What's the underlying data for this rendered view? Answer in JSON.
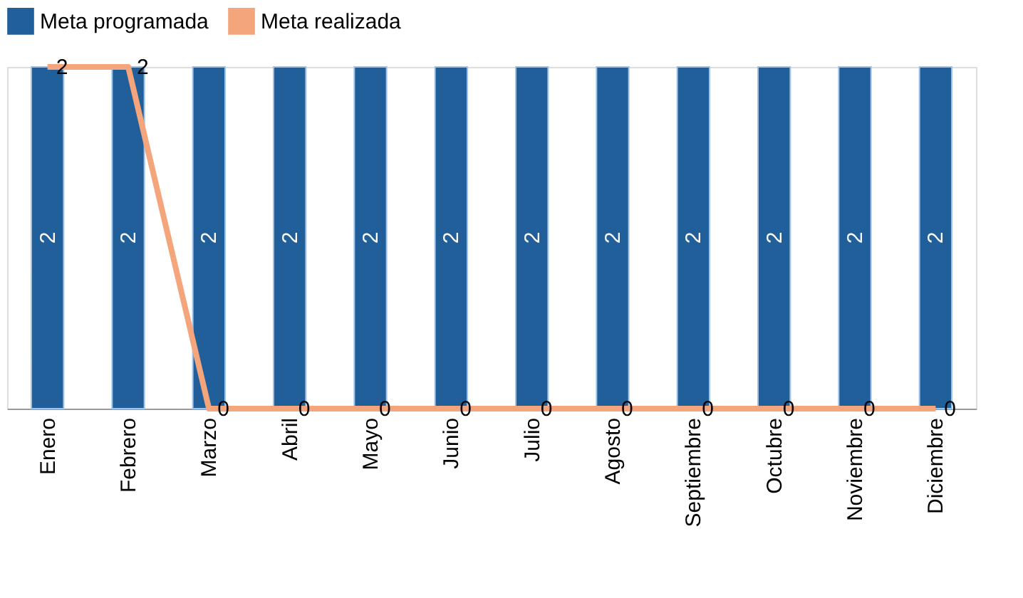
{
  "chart_data": {
    "type": "bar",
    "categories": [
      "Enero",
      "Febrero",
      "Marzo",
      "Abril",
      "Mayo",
      "Junio",
      "Julio",
      "Agosto",
      "Septiembre",
      "Octubre",
      "Noviembre",
      "Diciembre"
    ],
    "series": [
      {
        "name": "Meta programada",
        "color": "#215f9a",
        "values": [
          2,
          2,
          2,
          2,
          2,
          2,
          2,
          2,
          2,
          2,
          2,
          2
        ],
        "value_labels": [
          "2",
          "2",
          "2",
          "2",
          "2",
          "2",
          "2",
          "2",
          "2",
          "2",
          "2",
          "2"
        ]
      },
      {
        "name": "Meta realizada",
        "type": "line",
        "color": "#f4a57c",
        "values": [
          2,
          2,
          0,
          0,
          0,
          0,
          0,
          0,
          0,
          0,
          0,
          0
        ],
        "value_labels": [
          "2",
          "2",
          "0",
          "0",
          "0",
          "0",
          "0",
          "0",
          "0",
          "0",
          "0",
          "0"
        ]
      }
    ],
    "ylim": [
      0,
      2
    ],
    "legend": "top",
    "tick_labels": "x"
  }
}
